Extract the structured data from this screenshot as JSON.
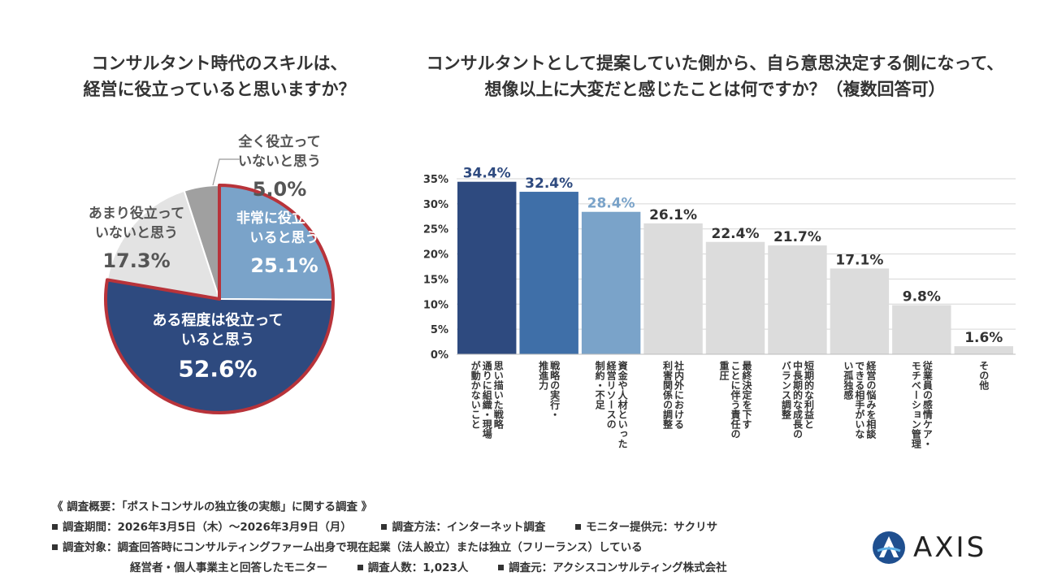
{
  "pie": {
    "title_lines": [
      "コンサルタント時代のスキルは、",
      "経営に役立っていると思いますか？"
    ]
  },
  "bar": {
    "title_lines": [
      "コンサルタントとして提案していた側から、自ら意思決定する側になって、",
      "想像以上に大変だと感じたことは何ですか？（複数回答可）"
    ]
  },
  "chart_data": [
    {
      "type": "pie",
      "slices": [
        {
          "label_lines": [
            "非常に役立って",
            "いると思う"
          ],
          "value": 25.1,
          "value_label": "25.1%",
          "color": "#7aa3c9"
        },
        {
          "label_lines": [
            "ある程度は役立って",
            "いると思う"
          ],
          "value": 52.6,
          "value_label": "52.6%",
          "color": "#2e4a7f"
        },
        {
          "label_lines": [
            "あまり役立って",
            "いないと思う"
          ],
          "value": 17.3,
          "value_label": "17.3%",
          "color": "#e3e3e3"
        },
        {
          "label_lines": [
            "全く役立って",
            "いないと思う"
          ],
          "value": 5.0,
          "value_label": "5.0%",
          "color": "#a0a0a0"
        }
      ],
      "highlight_color": "#b8333a"
    },
    {
      "type": "bar",
      "categories": [
        [
          "思い描いた戦略",
          "通りに組織・現場",
          "が動かないこと"
        ],
        [
          "戦略の実行・",
          "推進力"
        ],
        [
          "資金や人材といった",
          "経営リソースの",
          "制約・不足"
        ],
        [
          "社内外における",
          "利害関係の調整"
        ],
        [
          "最終決定を下す",
          "ことに伴う責任の",
          "重圧"
        ],
        [
          "短期的な利益と",
          "中長期的な成長の",
          "バランス調整"
        ],
        [
          "経営の悩みを相談",
          "できる相手がいな",
          "い孤独感"
        ],
        [
          "従業員の感情ケア・",
          "モチベーション管理"
        ],
        [
          "その他"
        ]
      ],
      "values": [
        34.4,
        32.4,
        28.4,
        26.1,
        22.4,
        21.7,
        17.1,
        9.8,
        1.6
      ],
      "value_labels": [
        "34.4%",
        "32.4%",
        "28.4%",
        "26.1%",
        "22.4%",
        "21.7%",
        "17.1%",
        "9.8%",
        "1.6%"
      ],
      "colors": [
        "#2e4a7f",
        "#3f6fa8",
        "#7aa3c9",
        "#dcdcdc",
        "#dcdcdc",
        "#dcdcdc",
        "#dcdcdc",
        "#dcdcdc",
        "#dcdcdc"
      ],
      "label_colors": [
        "#2e4a7f",
        "#2e4a7f",
        "#7aa3c9",
        "#333333",
        "#333333",
        "#333333",
        "#333333",
        "#333333",
        "#333333"
      ],
      "ylim": [
        0,
        35
      ],
      "yticks": [
        0,
        5,
        10,
        15,
        20,
        25,
        30,
        35
      ],
      "ytick_labels": [
        "0%",
        "5%",
        "10%",
        "15%",
        "20%",
        "25%",
        "30%",
        "35%"
      ],
      "grid": true
    }
  ],
  "footer": {
    "heading": "《 調査概要：「ポストコンサルの独立後の実態」に関する調査 》",
    "period": "調査期間：2026年3月5日（木）～2026年3月9日（月）",
    "method": "調査方法：インターネット調査",
    "provider": "モニター提供元：サクリサ",
    "target_1": "調査対象：調査回答時にコンサルティングファーム出身で現在起業（法人設立）または独立（フリーランス）している",
    "target_2": "経営者・個人事業主と回答したモニター",
    "count": "調査人数：1,023人",
    "source": "調査元：アクシスコンサルティング株式会社"
  },
  "logo": {
    "text": "AXIS",
    "icon": "axis-logo-icon"
  }
}
